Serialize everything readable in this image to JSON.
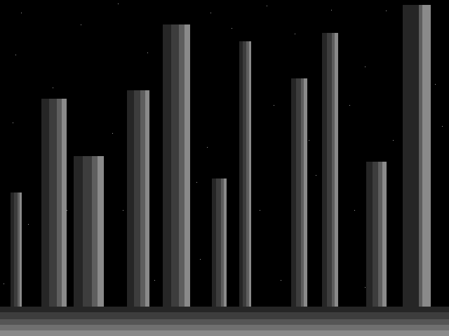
{
  "scene": {
    "background": "#000000",
    "star_color": "#9a9a9a",
    "pillar_shades": [
      "#262626",
      "#3d3d3d",
      "#5e5e5e",
      "#8a8a8a"
    ],
    "ground_shades": [
      "#262626",
      "#3d3d3d",
      "#555555",
      "#6f6f6f",
      "#8a8a8a"
    ],
    "pillar_count": 12
  }
}
